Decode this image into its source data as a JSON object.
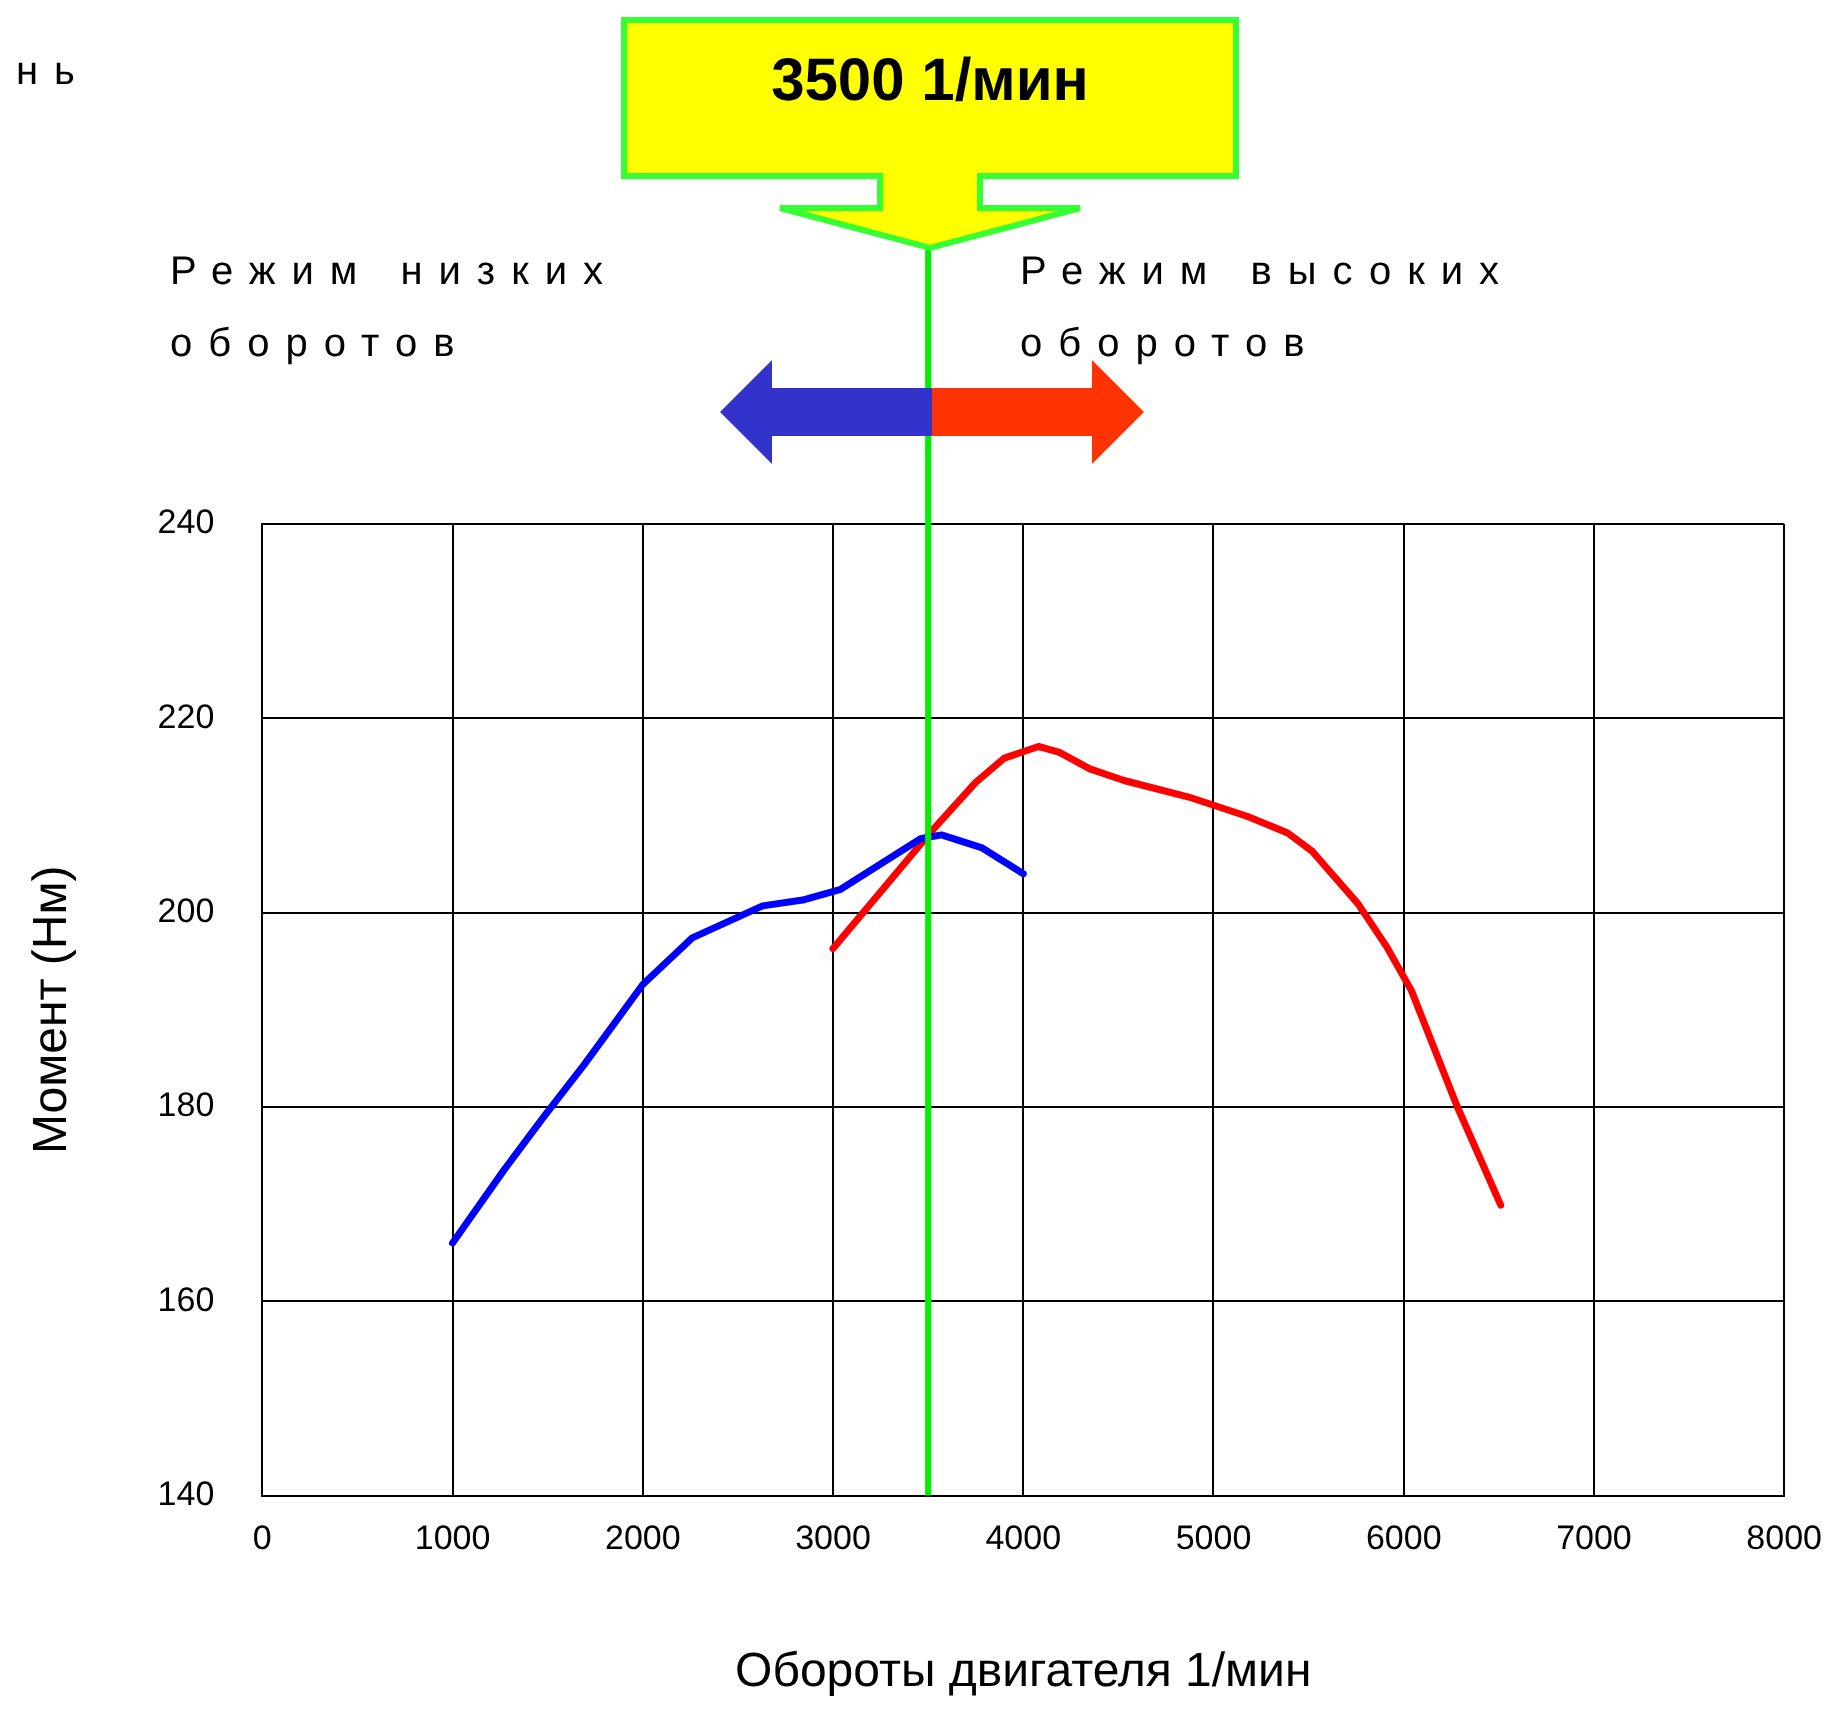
{
  "chart_data": {
    "type": "line",
    "xlabel": "Обороты двигателя 1/мин",
    "ylabel": "Момент (Нм)",
    "xlim": [
      0,
      8000
    ],
    "xticks": [
      0,
      1000,
      2000,
      3000,
      4000,
      5000,
      6000,
      7000,
      8000
    ],
    "ylim": [
      140,
      240
    ],
    "yticks": [
      140,
      160,
      180,
      200,
      220,
      240
    ],
    "grid": true,
    "legend": false,
    "marker": "none",
    "line_style": "solid",
    "series": [
      {
        "color": "#0000ff",
        "x": [
          1000,
          1270,
          1480,
          1690,
          2000,
          2260,
          2630,
          2840,
          3040,
          3250,
          3460,
          3570,
          3780,
          4000
        ],
        "values": [
          166,
          173.5,
          179,
          184.3,
          192.6,
          197.4,
          200.7,
          201.3,
          202.4,
          205,
          207.6,
          208,
          206.7,
          204
        ]
      },
      {
        "color": "#ff0000",
        "x": [
          3000,
          3510,
          3750,
          3900,
          4080,
          4190,
          4350,
          4530,
          4870,
          5180,
          5390,
          5520,
          5760,
          5910,
          6040,
          6280,
          6510
        ],
        "values": [
          196.3,
          208.2,
          213.4,
          215.9,
          217.1,
          216.5,
          214.8,
          213.6,
          211.9,
          209.9,
          208.2,
          206.3,
          200.9,
          196.5,
          192,
          180.1,
          169.9
        ]
      }
    ],
    "ref_lines": [
      {
        "axis": "x",
        "value": 3500,
        "label": "3500 1/мин",
        "color": "#00ee00"
      }
    ],
    "annotations": [
      "нь",
      "Режим низких оборотов",
      "Режим высоких оборотов"
    ]
  }
}
